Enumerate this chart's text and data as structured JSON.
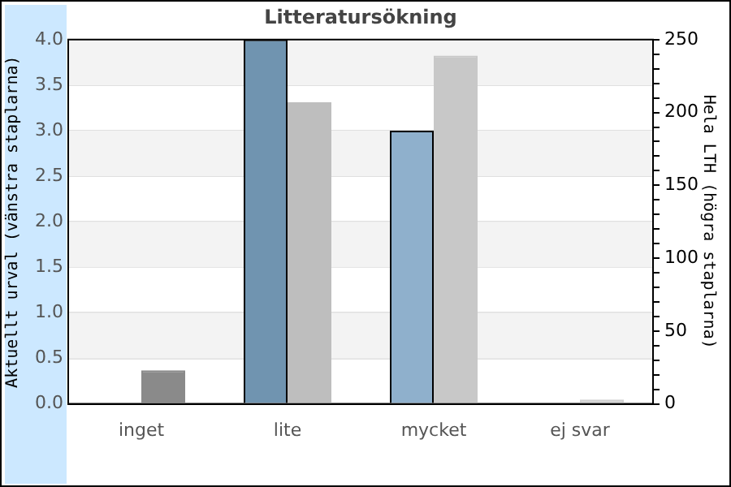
{
  "chart_data": {
    "type": "bar",
    "title": "Litteratursökning",
    "ylabel": "Aktuellt urval (vänstra staplarna)",
    "y2label": "Hela LTH (högra staplarna)",
    "categories": [
      "inget",
      "lite",
      "mycket",
      "ej svar"
    ],
    "series": [
      {
        "colors": [
          "#7094b0",
          "#7094b0",
          "#8fb0cc",
          "#8fb0cc"
        ],
        "values": [
          0,
          4.0,
          3.0,
          0
        ]
      },
      {
        "axis": "y2",
        "colors": [
          "#8a8a8a",
          "#bebebe",
          "#c8c8c8",
          "#d0d0d0"
        ],
        "values": [
          23,
          207,
          239,
          3
        ]
      }
    ],
    "ylim": [
      0,
      4
    ],
    "yticks": [
      {
        "value": 0,
        "label": "0.0"
      },
      {
        "value": 0.5,
        "label": "0.5"
      },
      {
        "value": 1,
        "label": "1.0"
      },
      {
        "value": 1.5,
        "label": "1.5"
      },
      {
        "value": 2,
        "label": "2.0"
      },
      {
        "value": 2.5,
        "label": "2.5"
      },
      {
        "value": 3,
        "label": "3.0"
      },
      {
        "value": 3.5,
        "label": "3.5"
      },
      {
        "value": 4,
        "label": "4.0"
      }
    ],
    "y2lim": [
      0,
      250
    ],
    "y2ticks": [
      0,
      {
        "value": 10,
        "label": null
      },
      {
        "value": 20,
        "label": null
      },
      {
        "value": 30,
        "label": null
      },
      {
        "value": 40,
        "label": null
      },
      50,
      {
        "value": 60,
        "label": null
      },
      {
        "value": 70,
        "label": null
      },
      {
        "value": 80,
        "label": null
      },
      {
        "value": 90,
        "label": null
      },
      100,
      {
        "value": 110,
        "label": null
      },
      {
        "value": 120,
        "label": null
      },
      {
        "value": 130,
        "label": null
      },
      {
        "value": 140,
        "label": null
      },
      150,
      {
        "value": 160,
        "label": null
      },
      {
        "value": 170,
        "label": null
      },
      {
        "value": 180,
        "label": null
      },
      {
        "value": 190,
        "label": null
      },
      200,
      {
        "value": 210,
        "label": null
      },
      {
        "value": 220,
        "label": null
      },
      {
        "value": 230,
        "label": null
      },
      {
        "value": 240,
        "label": null
      },
      250
    ],
    "grid": "y",
    "legend": false
  }
}
